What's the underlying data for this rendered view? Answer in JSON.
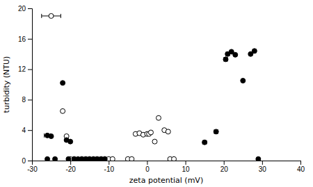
{
  "chart_data": {
    "type": "scatter",
    "xlabel": "zeta potential (mV)",
    "ylabel": "turbidity (NTU)",
    "xlim": [
      -30,
      40
    ],
    "ylim": [
      0,
      20
    ],
    "xticks": [
      -30,
      -20,
      -10,
      0,
      10,
      20,
      30,
      40
    ],
    "yticks": [
      0,
      4,
      8,
      12,
      16,
      20
    ],
    "series": [
      {
        "color": "#000000",
        "marker": "circle-open",
        "x": [
          -25,
          -22,
          -21,
          -20,
          -19,
          -17,
          -16,
          -15,
          -14,
          -13,
          -12,
          -11,
          -10,
          -9,
          -5,
          -4,
          -3,
          -2,
          -1,
          0,
          0.5,
          1,
          2,
          3,
          4.5,
          5.5,
          6,
          7
        ],
        "values": [
          19,
          6.5,
          3.2,
          0.2,
          0.2,
          0.2,
          0.2,
          0.2,
          0.2,
          0.2,
          0.2,
          0.2,
          0.2,
          0.2,
          0.2,
          0.2,
          3.5,
          3.6,
          3.4,
          3.5,
          3.5,
          3.7,
          2.5,
          5.6,
          4.0,
          3.8,
          0.2,
          0.2
        ],
        "xerr": [
          2.5,
          0,
          0,
          0,
          0,
          0,
          0,
          0,
          0,
          0,
          0,
          0,
          0,
          0,
          0,
          0,
          0,
          0,
          0,
          0,
          0,
          0,
          0,
          0,
          0,
          0,
          0,
          0
        ]
      },
      {
        "color": "#000000",
        "marker": "circle",
        "x": [
          -26,
          -25,
          -24,
          -22,
          -21,
          -20.5,
          -20,
          -19,
          -18,
          -17,
          -16,
          -15,
          -14,
          -13,
          -12,
          -11,
          -26,
          15,
          18,
          20.5,
          21,
          22,
          23,
          25,
          27,
          28,
          29
        ],
        "values": [
          0.2,
          3.2,
          0.2,
          10.2,
          2.7,
          0.2,
          2.5,
          0.2,
          0.2,
          0.2,
          0.2,
          0.2,
          0.2,
          0.2,
          0.2,
          0.2,
          3.3,
          2.4,
          3.8,
          13.3,
          14.0,
          14.3,
          13.9,
          10.5,
          14.0,
          14.4,
          0.2
        ],
        "xerr": [
          0,
          0,
          0,
          0,
          0,
          0,
          0,
          0,
          0,
          0,
          0,
          0,
          0,
          0,
          0,
          0,
          0.8,
          0.5,
          0.5,
          0.5,
          0.5,
          0,
          0,
          0,
          0,
          0.4,
          0
        ]
      }
    ]
  }
}
